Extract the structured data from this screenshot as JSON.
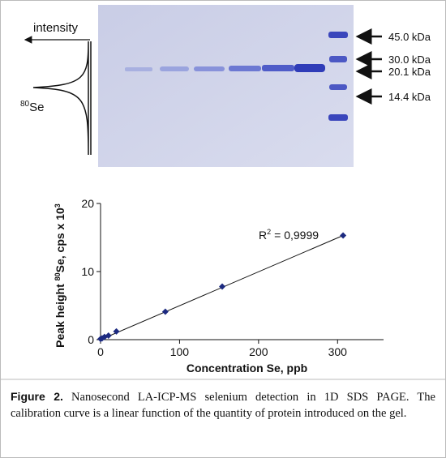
{
  "gel": {
    "intensity_label": "intensity",
    "isotope_mass": "80",
    "isotope_element": "Se",
    "markers": [
      "45.0 kDa",
      "30.0 kDa",
      "20.1 kDa",
      "14.4 kDa"
    ]
  },
  "chart_data": {
    "type": "scatter",
    "xlabel": "Concentration Se, ppb",
    "ylabel": [
      "Peak height ",
      "80",
      "Se, cps x 10",
      "3"
    ],
    "annotation": [
      "R",
      "2",
      "= 0,9999"
    ],
    "x": [
      0,
      2,
      5,
      10,
      20,
      82,
      154,
      307
    ],
    "series": [
      {
        "color": "#1c2a80",
        "values": [
          0.1,
          0.2,
          0.4,
          0.6,
          1.2,
          4.1,
          7.8,
          15.3
        ]
      }
    ],
    "fit": {
      "x": [
        0,
        307
      ],
      "y": [
        0,
        15.3
      ]
    },
    "xlim": [
      0,
      350
    ],
    "ylim": [
      0,
      20
    ],
    "xticks": [
      0,
      100,
      200,
      300
    ],
    "yticks": [
      0,
      10,
      20
    ]
  },
  "caption": {
    "label": "Figure 2.",
    "text": "Nanosecond LA-ICP-MS selenium detection in 1D SDS PAGE. The calibration curve is a linear function of the quantity of protein introduced on the gel."
  }
}
